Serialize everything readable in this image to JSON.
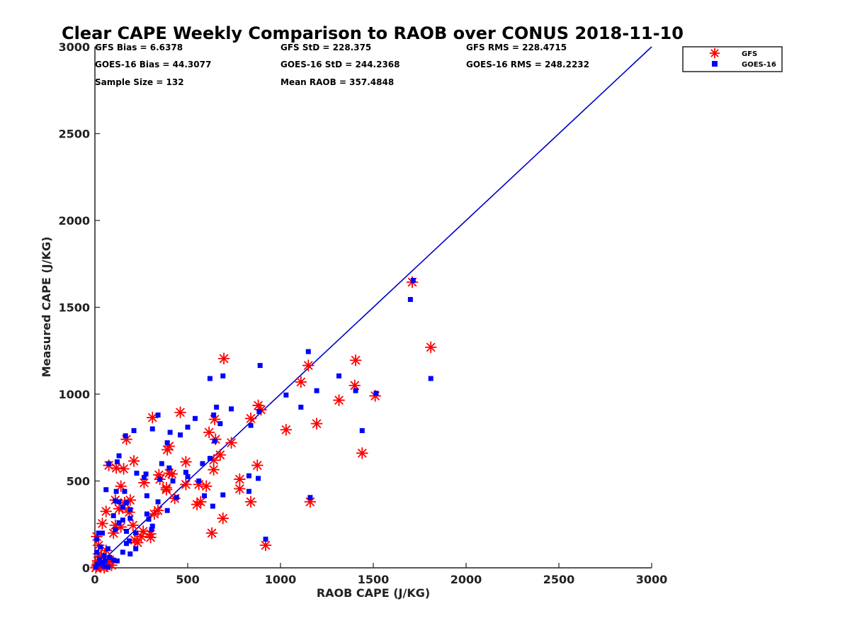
{
  "chart_data": {
    "type": "scatter",
    "title": "Clear CAPE Weekly Comparison to RAOB over CONUS 2018-11-10",
    "xlabel": "RAOB CAPE (J/KG)",
    "ylabel": "Measured CAPE (J/KG)",
    "xlim": [
      0,
      3000
    ],
    "ylim": [
      0,
      3000
    ],
    "x_ticks": [
      "0",
      "500",
      "1000",
      "1500",
      "2000",
      "2500",
      "3000"
    ],
    "y_ticks": [
      "0",
      "500",
      "1000",
      "1500",
      "2000",
      "2500",
      "3000"
    ],
    "grid": false,
    "legend_position": "top-right",
    "reference_line": {
      "x": [
        0,
        3000
      ],
      "y": [
        0,
        3000
      ],
      "color": "#0000cc"
    },
    "stats": [
      [
        "GFS Bias = 6.6378",
        "GFS StD = 228.375",
        "GFS RMS = 228.4715"
      ],
      [
        "GOES-16 Bias = 44.3077",
        "GOES-16 StD = 244.2368",
        "GOES-16 RMS = 248.2232"
      ],
      [
        "Sample Size = 132",
        "Mean RAOB = 357.4848",
        ""
      ]
    ],
    "series": [
      {
        "name": "GFS",
        "marker": "asterisk",
        "color": "#ff0000",
        "points": [
          [
            1710,
            1645
          ],
          [
            1810,
            1270
          ],
          [
            695,
            1205
          ],
          [
            1405,
            1195
          ],
          [
            1150,
            1165
          ],
          [
            1110,
            1070
          ],
          [
            1400,
            1050
          ],
          [
            1510,
            990
          ],
          [
            1315,
            965
          ],
          [
            880,
            935
          ],
          [
            895,
            910
          ],
          [
            460,
            895
          ],
          [
            310,
            865
          ],
          [
            840,
            860
          ],
          [
            645,
            855
          ],
          [
            1030,
            795
          ],
          [
            1195,
            830
          ],
          [
            615,
            780
          ],
          [
            170,
            740
          ],
          [
            735,
            720
          ],
          [
            650,
            740
          ],
          [
            390,
            680
          ],
          [
            400,
            700
          ],
          [
            1440,
            660
          ],
          [
            675,
            650
          ],
          [
            210,
            615
          ],
          [
            490,
            610
          ],
          [
            640,
            620
          ],
          [
            875,
            590
          ],
          [
            75,
            590
          ],
          [
            115,
            575
          ],
          [
            155,
            570
          ],
          [
            640,
            565
          ],
          [
            400,
            545
          ],
          [
            345,
            535
          ],
          [
            415,
            540
          ],
          [
            350,
            510
          ],
          [
            780,
            510
          ],
          [
            490,
            480
          ],
          [
            560,
            480
          ],
          [
            600,
            470
          ],
          [
            140,
            470
          ],
          [
            385,
            460
          ],
          [
            385,
            450
          ],
          [
            780,
            455
          ],
          [
            265,
            490
          ],
          [
            430,
            400
          ],
          [
            190,
            390
          ],
          [
            110,
            390
          ],
          [
            160,
            375
          ],
          [
            570,
            380
          ],
          [
            550,
            365
          ],
          [
            840,
            380
          ],
          [
            1160,
            380
          ],
          [
            150,
            345
          ],
          [
            130,
            340
          ],
          [
            340,
            330
          ],
          [
            185,
            320
          ],
          [
            60,
            325
          ],
          [
            320,
            310
          ],
          [
            690,
            285
          ],
          [
            110,
            245
          ],
          [
            205,
            245
          ],
          [
            140,
            235
          ],
          [
            260,
            210
          ],
          [
            40,
            255
          ],
          [
            300,
            195
          ],
          [
            100,
            200
          ],
          [
            250,
            180
          ],
          [
            300,
            175
          ],
          [
            630,
            200
          ],
          [
            215,
            160
          ],
          [
            230,
            145
          ],
          [
            920,
            130
          ],
          [
            10,
            180
          ],
          [
            20,
            130
          ],
          [
            60,
            100
          ],
          [
            35,
            60
          ],
          [
            80,
            45
          ],
          [
            10,
            10
          ],
          [
            25,
            15
          ],
          [
            45,
            25
          ],
          [
            60,
            10
          ],
          [
            5,
            0
          ],
          [
            15,
            40
          ],
          [
            30,
            5
          ],
          [
            50,
            0
          ],
          [
            70,
            20
          ],
          [
            90,
            15
          ],
          [
            20,
            80
          ]
        ]
      },
      {
        "name": "GOES-16",
        "marker": "square",
        "color": "#0000ff",
        "points": [
          [
            1715,
            1655
          ],
          [
            1700,
            1545
          ],
          [
            1150,
            1245
          ],
          [
            890,
            1165
          ],
          [
            690,
            1105
          ],
          [
            1315,
            1105
          ],
          [
            620,
            1090
          ],
          [
            1810,
            1090
          ],
          [
            1405,
            1020
          ],
          [
            1195,
            1020
          ],
          [
            1515,
            1005
          ],
          [
            1030,
            995
          ],
          [
            655,
            925
          ],
          [
            735,
            915
          ],
          [
            1110,
            925
          ],
          [
            885,
            900
          ],
          [
            640,
            880
          ],
          [
            340,
            880
          ],
          [
            540,
            860
          ],
          [
            675,
            830
          ],
          [
            840,
            820
          ],
          [
            500,
            810
          ],
          [
            310,
            800
          ],
          [
            210,
            790
          ],
          [
            1440,
            790
          ],
          [
            405,
            780
          ],
          [
            460,
            765
          ],
          [
            165,
            760
          ],
          [
            645,
            730
          ],
          [
            390,
            720
          ],
          [
            130,
            645
          ],
          [
            620,
            630
          ],
          [
            75,
            600
          ],
          [
            120,
            610
          ],
          [
            360,
            600
          ],
          [
            580,
            600
          ],
          [
            400,
            575
          ],
          [
            225,
            545
          ],
          [
            490,
            550
          ],
          [
            275,
            540
          ],
          [
            830,
            530
          ],
          [
            500,
            525
          ],
          [
            350,
            510
          ],
          [
            420,
            500
          ],
          [
            265,
            520
          ],
          [
            560,
            500
          ],
          [
            880,
            515
          ],
          [
            60,
            450
          ],
          [
            115,
            440
          ],
          [
            160,
            440
          ],
          [
            830,
            440
          ],
          [
            280,
            415
          ],
          [
            590,
            415
          ],
          [
            690,
            420
          ],
          [
            1160,
            405
          ],
          [
            440,
            405
          ],
          [
            110,
            385
          ],
          [
            130,
            380
          ],
          [
            340,
            380
          ],
          [
            170,
            375
          ],
          [
            635,
            355
          ],
          [
            150,
            350
          ],
          [
            190,
            335
          ],
          [
            390,
            330
          ],
          [
            100,
            300
          ],
          [
            280,
            310
          ],
          [
            190,
            285
          ],
          [
            150,
            275
          ],
          [
            290,
            280
          ],
          [
            130,
            260
          ],
          [
            310,
            240
          ],
          [
            170,
            210
          ],
          [
            220,
            200
          ],
          [
            110,
            220
          ],
          [
            305,
            220
          ],
          [
            20,
            200
          ],
          [
            40,
            200
          ],
          [
            10,
            165
          ],
          [
            920,
            165
          ],
          [
            185,
            155
          ],
          [
            170,
            140
          ],
          [
            30,
            120
          ],
          [
            220,
            110
          ],
          [
            70,
            110
          ],
          [
            150,
            90
          ],
          [
            190,
            80
          ],
          [
            10,
            90
          ],
          [
            50,
            70
          ],
          [
            25,
            50
          ],
          [
            80,
            60
          ],
          [
            35,
            30
          ],
          [
            55,
            40
          ],
          [
            15,
            20
          ],
          [
            5,
            5
          ],
          [
            45,
            10
          ],
          [
            70,
            5
          ],
          [
            100,
            45
          ],
          [
            120,
            40
          ]
        ]
      }
    ]
  }
}
